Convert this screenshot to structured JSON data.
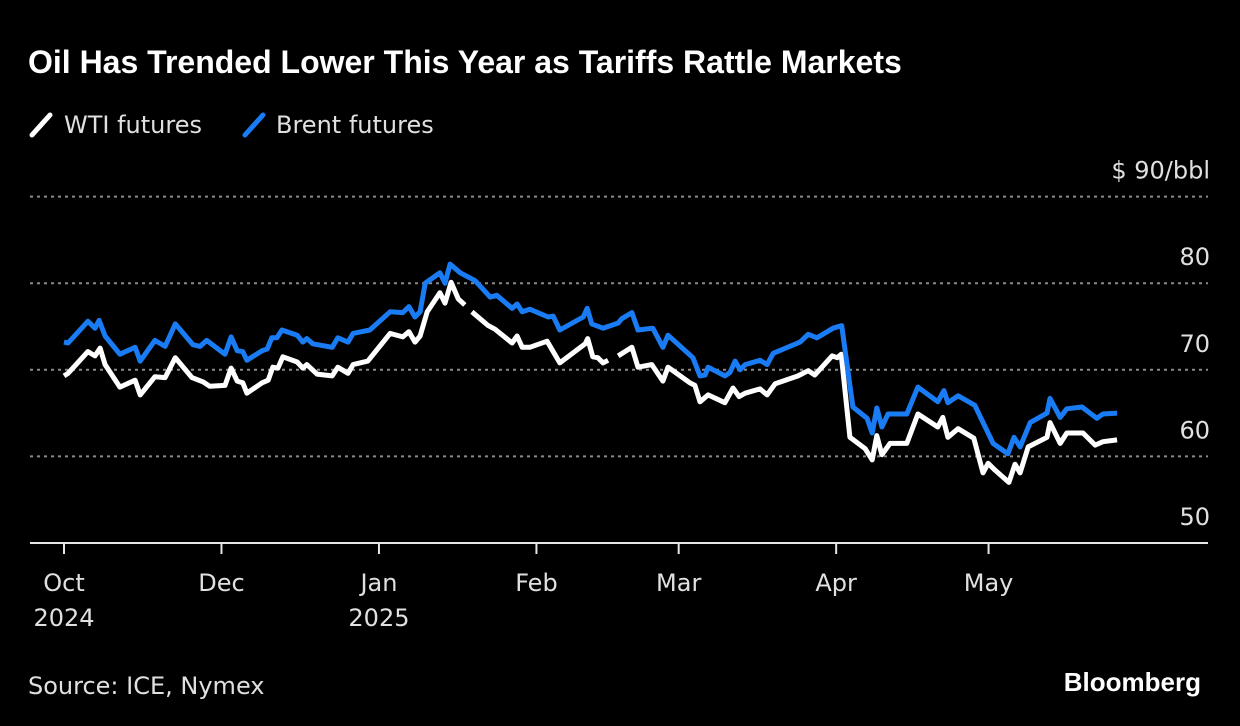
{
  "chart_data": {
    "type": "line",
    "title": "Oil Has Trended Lower This Year as Tariffs Rattle Markets",
    "xlabel": "",
    "ylabel": "",
    "ylim": [
      50,
      90
    ],
    "y_ticks": [
      {
        "value": 90,
        "label": "$ 90/bbl"
      },
      {
        "value": 80,
        "label": "80"
      },
      {
        "value": 70,
        "label": "70"
      },
      {
        "value": 60,
        "label": "60"
      },
      {
        "value": 50,
        "label": "50"
      }
    ],
    "x_unit": "days since first tick",
    "xlim": [
      0,
      207.3
    ],
    "x_ticks": [
      {
        "value": 0,
        "label": "Oct",
        "year": "2024"
      },
      {
        "value": 31,
        "label": "Dec",
        "year": ""
      },
      {
        "value": 62,
        "label": "Jan",
        "year": "2025"
      },
      {
        "value": 93,
        "label": "Feb",
        "year": ""
      },
      {
        "value": 121,
        "label": "Mar",
        "year": ""
      },
      {
        "value": 152,
        "label": "Apr",
        "year": ""
      },
      {
        "value": 182,
        "label": "May",
        "year": ""
      }
    ],
    "grid": true,
    "legend_position": "top-left",
    "series": [
      {
        "name": "WTI futures",
        "color": "#ffffff",
        "points": [
          [
            0,
            69.3
          ],
          [
            0.8,
            69.6
          ],
          [
            4.7,
            72.1
          ],
          [
            6.1,
            71.6
          ],
          [
            7.1,
            72.5
          ],
          [
            8.1,
            70.6
          ],
          [
            11.0,
            68.0
          ],
          [
            14.0,
            68.8
          ],
          [
            15.0,
            67.1
          ],
          [
            17.9,
            69.2
          ],
          [
            19.9,
            69.1
          ],
          [
            21.9,
            71.4
          ],
          [
            25.2,
            69.1
          ],
          [
            27.4,
            68.6
          ],
          [
            28.7,
            68.1
          ],
          [
            31.7,
            68.2
          ],
          [
            32.9,
            70.2
          ],
          [
            34.1,
            68.7
          ],
          [
            35.2,
            68.5
          ],
          [
            36.0,
            67.3
          ],
          [
            39.0,
            68.5
          ],
          [
            40.2,
            68.8
          ],
          [
            41.1,
            70.3
          ],
          [
            42.1,
            70.2
          ],
          [
            43.1,
            71.5
          ],
          [
            45.9,
            70.9
          ],
          [
            47.0,
            70.2
          ],
          [
            47.8,
            70.6
          ],
          [
            49.8,
            69.5
          ],
          [
            52.8,
            69.3
          ],
          [
            53.9,
            70.3
          ],
          [
            55.9,
            69.6
          ],
          [
            56.9,
            70.6
          ],
          [
            59.8,
            71.0
          ],
          [
            64.2,
            74.2
          ],
          [
            66.7,
            73.8
          ],
          [
            67.9,
            74.4
          ],
          [
            69.1,
            73.2
          ],
          [
            70.1,
            73.9
          ],
          [
            71.5,
            76.7
          ],
          [
            74.0,
            78.9
          ],
          [
            75.0,
            77.7
          ],
          [
            76.2,
            80.1
          ],
          [
            77.6,
            78.2
          ],
          [
            78.9,
            77.5
          ],
          null,
          [
            80.3,
            76.7
          ],
          [
            83.5,
            75.1
          ],
          [
            84.8,
            74.7
          ],
          [
            88.2,
            73.1
          ],
          [
            89.2,
            73.9
          ],
          [
            90.2,
            72.6
          ],
          [
            91.7,
            72.6
          ],
          [
            95.1,
            73.3
          ],
          [
            97.6,
            70.8
          ],
          [
            102.6,
            73.0
          ],
          [
            103.1,
            73.6
          ],
          [
            104.1,
            71.5
          ],
          [
            105.1,
            71.4
          ],
          [
            106.1,
            70.8
          ],
          [
            107.1,
            71.1
          ],
          null,
          [
            109.1,
            71.6
          ],
          [
            111.8,
            72.6
          ],
          [
            113.0,
            70.3
          ],
          [
            115.7,
            70.6
          ],
          [
            117.9,
            68.7
          ],
          [
            118.9,
            70.3
          ],
          [
            123.2,
            68.5
          ],
          [
            124.2,
            68.2
          ],
          [
            125.2,
            66.3
          ],
          [
            126.8,
            67.1
          ],
          [
            130.1,
            66.2
          ],
          [
            131.7,
            67.9
          ],
          [
            132.9,
            66.9
          ],
          [
            134.1,
            67.3
          ],
          [
            137.0,
            67.8
          ],
          [
            138.4,
            67.1
          ],
          [
            140.0,
            68.4
          ],
          [
            144.5,
            69.3
          ],
          [
            146.5,
            69.9
          ],
          [
            147.8,
            69.4
          ],
          [
            151.2,
            71.6
          ],
          [
            152.2,
            71.4
          ],
          [
            153.0,
            71.8
          ],
          [
            154.7,
            62.2
          ],
          [
            157.7,
            60.9
          ],
          [
            159.1,
            59.6
          ],
          [
            160.0,
            62.4
          ],
          [
            161.0,
            60.2
          ],
          [
            162.6,
            61.5
          ],
          [
            165.9,
            61.5
          ],
          [
            168.1,
            64.9
          ],
          [
            172.0,
            63.4
          ],
          [
            173.0,
            64.5
          ],
          [
            174.0,
            62.2
          ],
          [
            176.0,
            63.2
          ],
          [
            179.1,
            62.1
          ],
          [
            180.9,
            58.1
          ],
          [
            181.9,
            59.2
          ],
          [
            183.3,
            58.4
          ],
          [
            186.0,
            57.0
          ],
          [
            187.2,
            59.1
          ],
          [
            188.2,
            58.1
          ],
          [
            189.8,
            61.1
          ],
          [
            193.5,
            62.2
          ],
          [
            194.1,
            63.9
          ],
          [
            196.1,
            61.5
          ],
          [
            197.4,
            62.7
          ],
          [
            200.6,
            62.7
          ],
          [
            203.0,
            61.3
          ],
          [
            204.5,
            61.7
          ],
          [
            207.3,
            61.9
          ]
        ]
      },
      {
        "name": "Brent futures",
        "color": "#1a7cf5",
        "points": [
          [
            0,
            73.2
          ],
          [
            0.8,
            73.1
          ],
          [
            4.7,
            75.6
          ],
          [
            6.1,
            74.8
          ],
          [
            6.9,
            75.7
          ],
          [
            8.1,
            73.9
          ],
          [
            11.0,
            71.8
          ],
          [
            14.0,
            72.6
          ],
          [
            15.0,
            71.0
          ],
          [
            17.9,
            73.4
          ],
          [
            19.9,
            72.7
          ],
          [
            21.9,
            75.3
          ],
          [
            25.4,
            72.9
          ],
          [
            26.8,
            72.7
          ],
          [
            28.1,
            73.4
          ],
          [
            31.7,
            71.8
          ],
          [
            32.9,
            73.8
          ],
          [
            34.1,
            72.2
          ],
          [
            35.2,
            72.1
          ],
          [
            36.0,
            71.1
          ],
          [
            39.0,
            72.2
          ],
          [
            40.0,
            72.4
          ],
          [
            40.9,
            73.7
          ],
          [
            41.9,
            73.7
          ],
          [
            42.9,
            74.6
          ],
          [
            45.9,
            74.0
          ],
          [
            47.0,
            73.2
          ],
          [
            47.8,
            73.6
          ],
          [
            49.0,
            73.0
          ],
          [
            52.8,
            72.6
          ],
          [
            53.9,
            73.7
          ],
          [
            55.9,
            73.2
          ],
          [
            56.9,
            74.2
          ],
          [
            60.2,
            74.6
          ],
          [
            64.2,
            76.7
          ],
          [
            66.7,
            76.6
          ],
          [
            67.9,
            77.3
          ],
          [
            69.1,
            76.1
          ],
          [
            70.1,
            76.7
          ],
          [
            71.1,
            80.0
          ],
          [
            74.0,
            81.2
          ],
          [
            75.0,
            80.0
          ],
          [
            76.0,
            82.2
          ],
          [
            78.0,
            81.2
          ],
          [
            80.9,
            80.3
          ],
          [
            83.9,
            78.4
          ],
          [
            85.2,
            78.6
          ],
          [
            88.2,
            77.1
          ],
          [
            89.2,
            77.6
          ],
          [
            90.2,
            76.7
          ],
          [
            91.7,
            77.0
          ],
          [
            95.3,
            76.1
          ],
          [
            96.3,
            76.2
          ],
          [
            97.6,
            74.6
          ],
          [
            102.2,
            76.1
          ],
          [
            103.0,
            77.1
          ],
          [
            103.9,
            75.3
          ],
          [
            106.1,
            74.8
          ],
          [
            109.1,
            75.4
          ],
          [
            109.8,
            75.9
          ],
          [
            111.8,
            76.6
          ],
          [
            113.0,
            74.6
          ],
          [
            115.9,
            74.8
          ],
          [
            117.9,
            72.6
          ],
          [
            118.9,
            74.0
          ],
          [
            123.8,
            71.4
          ],
          [
            125.2,
            69.3
          ],
          [
            126.2,
            69.4
          ],
          [
            126.8,
            70.3
          ],
          [
            130.1,
            69.3
          ],
          [
            131.1,
            69.7
          ],
          [
            132.1,
            71.0
          ],
          [
            133.1,
            70.0
          ],
          [
            134.1,
            70.6
          ],
          [
            137.0,
            71.1
          ],
          [
            138.4,
            70.6
          ],
          [
            139.6,
            71.9
          ],
          [
            144.9,
            73.2
          ],
          [
            146.5,
            74.1
          ],
          [
            148.2,
            73.7
          ],
          [
            151.4,
            74.8
          ],
          [
            153.1,
            75.1
          ],
          [
            155.3,
            65.7
          ],
          [
            158.1,
            64.4
          ],
          [
            159.1,
            62.7
          ],
          [
            160.0,
            65.6
          ],
          [
            161.0,
            63.4
          ],
          [
            162.2,
            64.9
          ],
          [
            165.9,
            64.9
          ],
          [
            168.1,
            68.0
          ],
          [
            172.0,
            66.3
          ],
          [
            173.2,
            67.6
          ],
          [
            174.0,
            66.2
          ],
          [
            176.0,
            67.0
          ],
          [
            179.3,
            65.9
          ],
          [
            182.9,
            61.5
          ],
          [
            185.8,
            60.3
          ],
          [
            187.0,
            62.2
          ],
          [
            188.2,
            61.1
          ],
          [
            190.2,
            63.9
          ],
          [
            193.5,
            65.0
          ],
          [
            194.1,
            66.7
          ],
          [
            196.1,
            64.5
          ],
          [
            197.4,
            65.5
          ],
          [
            200.4,
            65.7
          ],
          [
            203.3,
            64.4
          ],
          [
            204.5,
            64.9
          ],
          [
            207.3,
            65.0
          ]
        ]
      }
    ],
    "source": "Source: ICE, Nymex",
    "brand": "Bloomberg"
  }
}
